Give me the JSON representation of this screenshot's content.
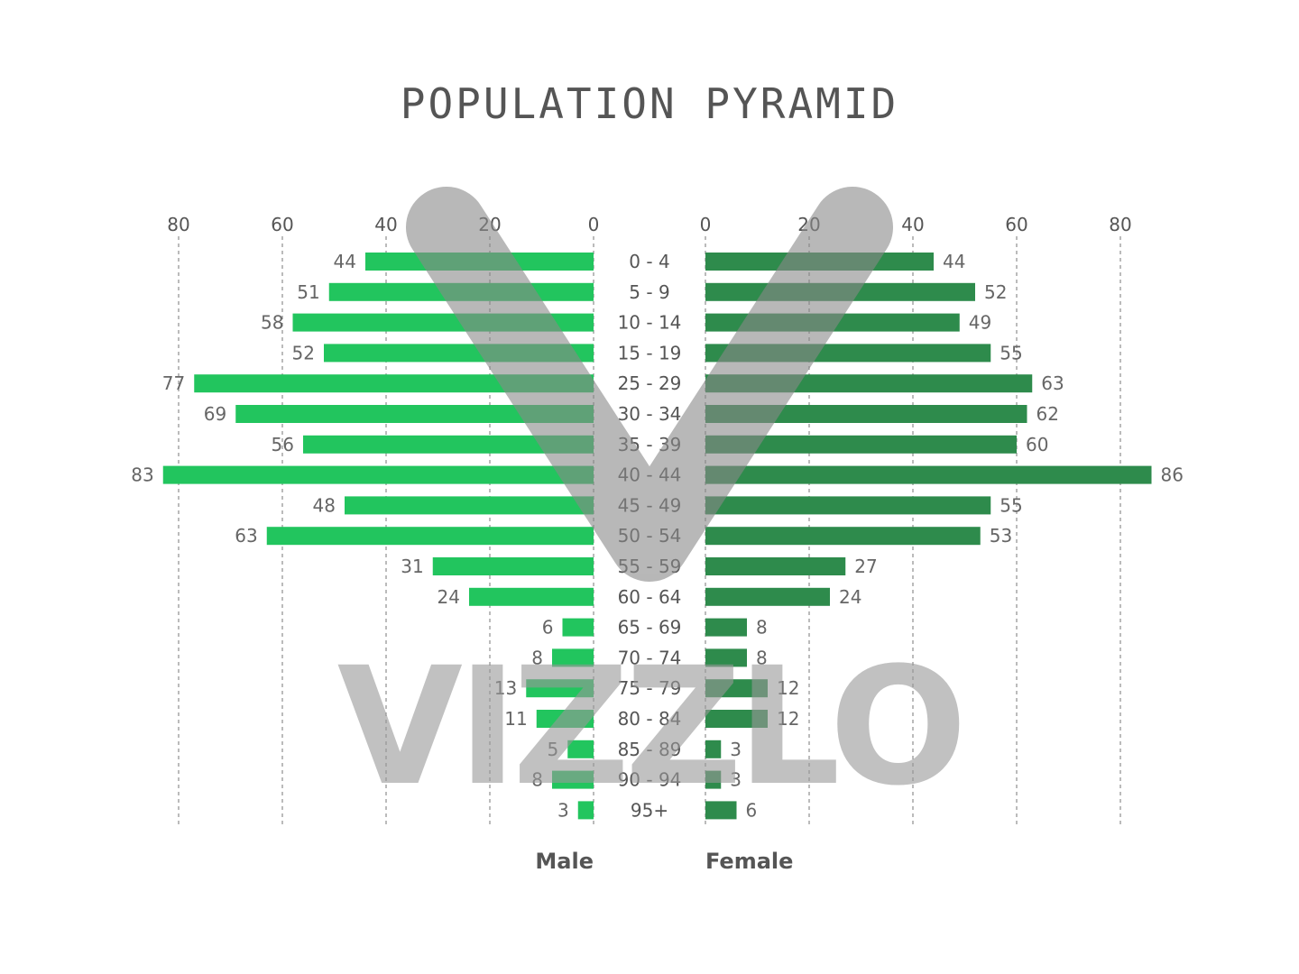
{
  "chart_data": {
    "type": "bar",
    "title": "POPULATION PYRAMID",
    "categories": [
      "0 - 4",
      "5 - 9",
      "10 - 14",
      "15 - 19",
      "25 - 29",
      "30 - 34",
      "35 - 39",
      "40 - 44",
      "45 - 49",
      "50 - 54",
      "55 - 59",
      "60 - 64",
      "65 - 69",
      "70 - 74",
      "75 - 79",
      "80 - 84",
      "85 - 89",
      "90 - 94",
      "95+"
    ],
    "series": [
      {
        "name": "Male",
        "color": "#22c55e",
        "values": [
          44,
          51,
          58,
          52,
          77,
          69,
          56,
          83,
          48,
          63,
          31,
          24,
          6,
          8,
          13,
          11,
          5,
          8,
          3
        ]
      },
      {
        "name": "Female",
        "color": "#2e8b4c",
        "values": [
          44,
          52,
          49,
          55,
          63,
          62,
          60,
          86,
          55,
          53,
          27,
          24,
          8,
          8,
          12,
          12,
          3,
          3,
          6
        ]
      }
    ],
    "xlim": [
      0,
      80
    ],
    "xticks": [
      0,
      20,
      40,
      60,
      80
    ],
    "grid": true
  },
  "watermark": {
    "text": "VIZZLO",
    "color": "#999999"
  }
}
